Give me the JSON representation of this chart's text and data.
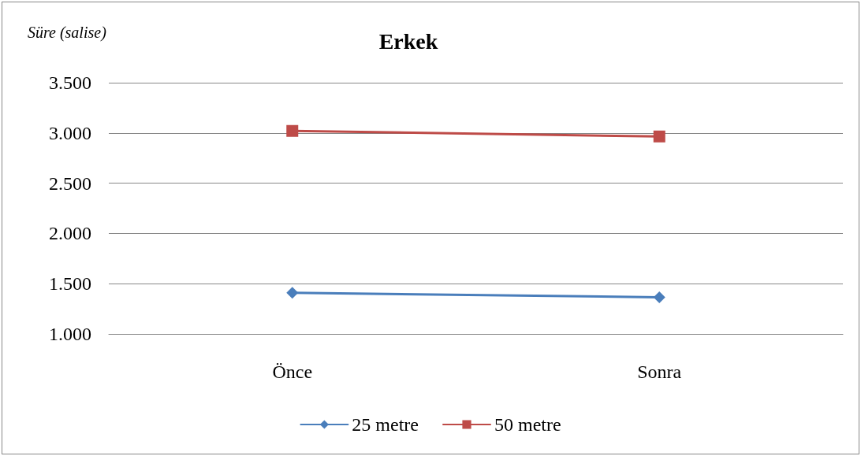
{
  "chart_data": {
    "type": "line",
    "title": "Erkek",
    "ylabel": "Süre (salise)",
    "categories": [
      "Önce",
      "Sonra"
    ],
    "series": [
      {
        "name": "25 metre",
        "color": "#4a7ebb",
        "marker": "diamond",
        "values": [
          1410,
          1365
        ]
      },
      {
        "name": "50 metre",
        "color": "#be4b48",
        "marker": "square",
        "values": [
          3020,
          2965
        ]
      }
    ],
    "ylim": [
      1000,
      3500
    ],
    "yticks": [
      {
        "value": 1000,
        "label": "1.000"
      },
      {
        "value": 1500,
        "label": "1.500"
      },
      {
        "value": 2000,
        "label": "2.000"
      },
      {
        "value": 2500,
        "label": "2.500"
      },
      {
        "value": 3000,
        "label": "3.000"
      },
      {
        "value": 3500,
        "label": "3.500"
      }
    ],
    "grid": "y",
    "legend": "bottom",
    "line_style": "solid"
  }
}
